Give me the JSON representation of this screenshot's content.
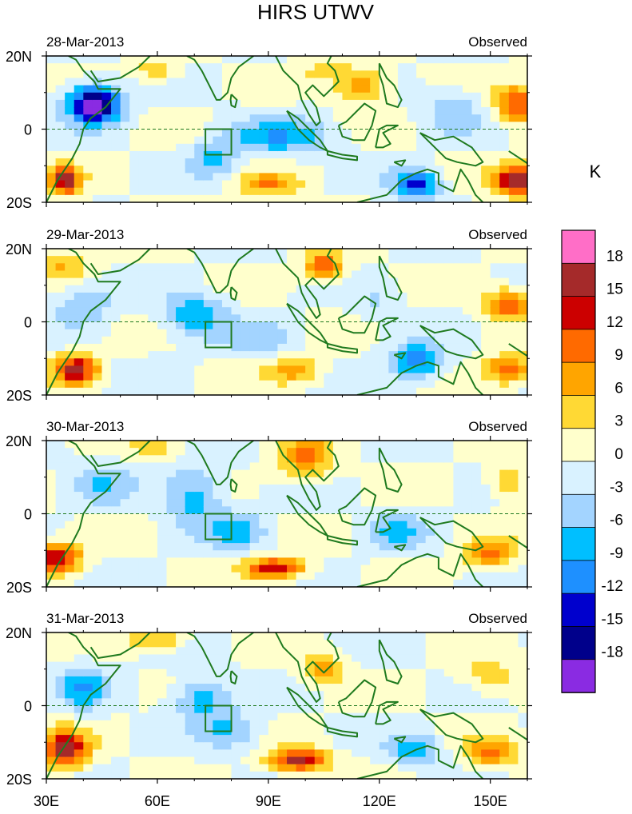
{
  "chart_data": {
    "type": "heatmap",
    "title": "HIRS UTWV",
    "panels": [
      {
        "date": "28-Mar-2013",
        "label": "Observed"
      },
      {
        "date": "29-Mar-2013",
        "label": "Observed"
      },
      {
        "date": "30-Mar-2013",
        "label": "Observed"
      },
      {
        "date": "31-Mar-2013",
        "label": "Observed"
      }
    ],
    "x_ticks": [
      "30E",
      "60E",
      "90E",
      "120E",
      "150E"
    ],
    "x_tick_values": [
      30,
      60,
      90,
      120,
      150
    ],
    "y_ticks": [
      "20N",
      "0",
      "20S"
    ],
    "y_tick_values": [
      20,
      0,
      -20
    ],
    "xlim": [
      30,
      160
    ],
    "ylim": [
      -20,
      20
    ],
    "box_region": {
      "lon": [
        73,
        80
      ],
      "lat": [
        -7,
        0
      ]
    },
    "colorbar": {
      "unit": "K",
      "levels": [
        "18",
        "15",
        "12",
        "9",
        "6",
        "3",
        "0",
        "-3",
        "-6",
        "-9",
        "-12",
        "-15",
        "-18"
      ],
      "colors": [
        "#ff6ec7",
        "#a52a2a",
        "#cc0000",
        "#ff6a00",
        "#ffa500",
        "#ffd934",
        "#ffffcc",
        "#d9f2ff",
        "#a3d4ff",
        "#00bfff",
        "#1e90ff",
        "#0000cd",
        "#00008b",
        "#8a2be2"
      ]
    }
  }
}
